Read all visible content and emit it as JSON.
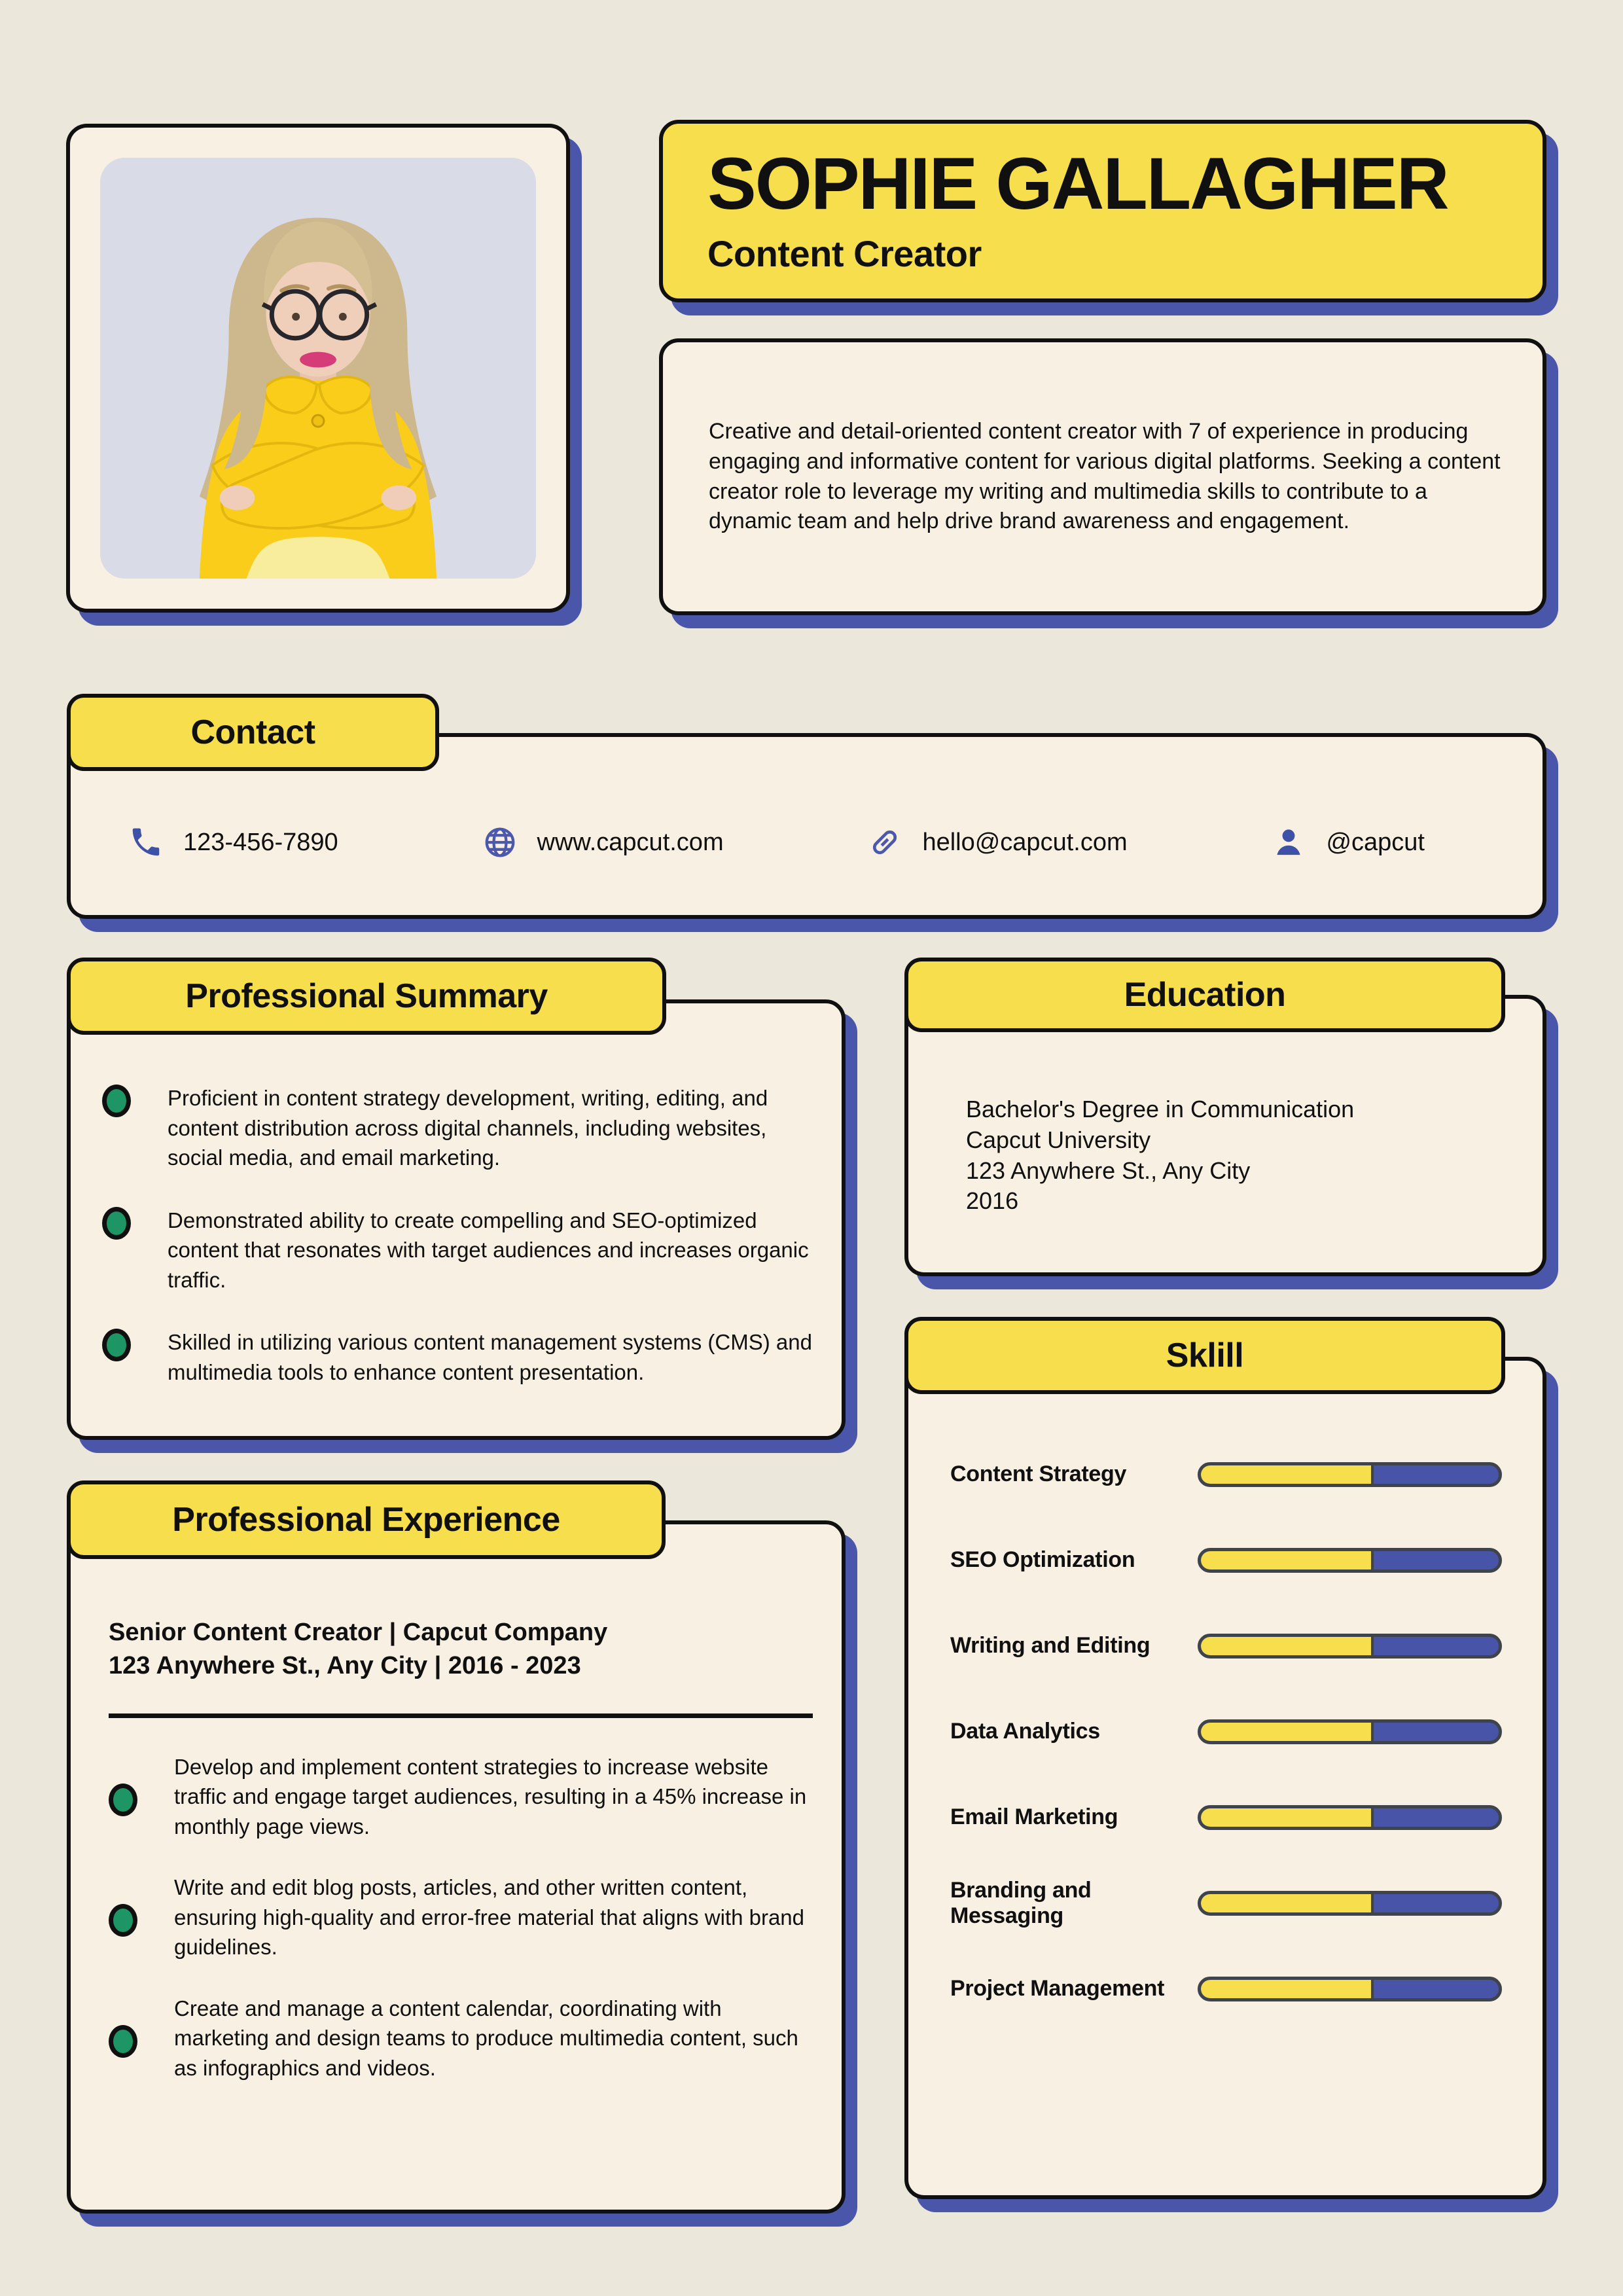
{
  "header": {
    "name": "SOPHIE GALLAGHER",
    "title": "Content Creator",
    "about": "Creative and detail-oriented content creator with 7 of experience in producing engaging and informative content for various digital platforms. Seeking a content creator role to leverage my writing and multimedia skills to contribute to a dynamic team and help drive brand awareness and engagement."
  },
  "contact": {
    "heading": "Contact",
    "items": [
      {
        "icon": "phone-icon",
        "text": "123-456-7890"
      },
      {
        "icon": "globe-icon",
        "text": "www.capcut.com"
      },
      {
        "icon": "link-icon",
        "text": "hello@capcut.com"
      },
      {
        "icon": "user-icon",
        "text": "@capcut"
      }
    ]
  },
  "professional_summary": {
    "heading": "Professional Summary",
    "bullets": [
      "Proficient in content strategy development, writing, editing, and content distribution across digital channels, including websites, social media, and email marketing.",
      "Demonstrated ability to create compelling and SEO-optimized content that resonates with target audiences and increases organic traffic.",
      "Skilled in utilizing various content management systems (CMS) and multimedia tools to enhance content presentation."
    ]
  },
  "education": {
    "heading": "Education",
    "lines": [
      "Bachelor's Degree in Communication",
      "Capcut University",
      "123 Anywhere St., Any City",
      "2016"
    ]
  },
  "skills": {
    "heading": "Sklill",
    "items": [
      {
        "label": "Content Strategy",
        "percent": 58
      },
      {
        "label": "SEO Optimization",
        "percent": 58
      },
      {
        "label": "Writing and Editing",
        "percent": 58
      },
      {
        "label": "Data Analytics",
        "percent": 58
      },
      {
        "label": "Email Marketing",
        "percent": 58
      },
      {
        "label": "Branding and Messaging",
        "percent": 58
      },
      {
        "label": "Project Management",
        "percent": 58
      }
    ]
  },
  "experience": {
    "heading": "Professional Experience",
    "role": "Senior Content Creator | Capcut Company",
    "meta": "123 Anywhere St., Any City | 2016 - 2023",
    "bullets": [
      "Develop and implement content strategies to increase website traffic and engage target audiences, resulting in a 45% increase in monthly page views.",
      "Write and edit blog posts, articles, and other written content, ensuring high-quality and error-free material that aligns with brand guidelines.",
      "Create and manage a content calendar, coordinating with marketing and design teams to produce multimedia content, such as infographics and videos."
    ]
  },
  "colors": {
    "accent_yellow": "#F6DE4D",
    "shadow_blue": "#4A56A9",
    "card_cream": "#F8F0E2",
    "bullet_green": "#1E9564",
    "bar_blue": "#4754A7",
    "bar_border": "#3F444C",
    "icon_blue": "#3D51A6",
    "page_background": "#ECE7DB"
  }
}
